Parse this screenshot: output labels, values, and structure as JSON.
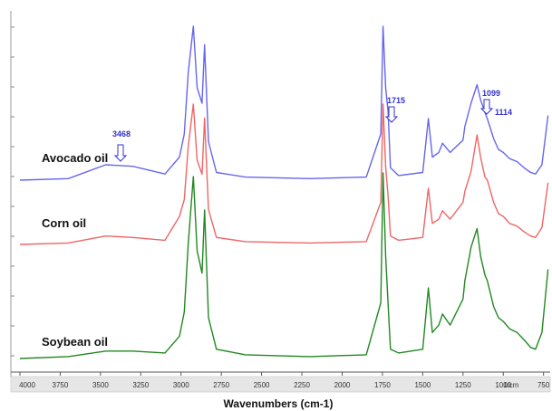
{
  "chart_data": {
    "type": "line",
    "title": "",
    "xlabel": "Wavenumbers (cm-1)",
    "ylabel": "",
    "x_unit_label": "1/cm",
    "xlim": [
      4000,
      720
    ],
    "x_reversed": true,
    "grid": false,
    "x_ticks": [
      4000,
      3750,
      3500,
      3250,
      3000,
      2750,
      2500,
      2250,
      2000,
      1750,
      1500,
      1250,
      1000,
      750
    ],
    "series": [
      {
        "name": "Avocado oil",
        "color": "#6666ee",
        "points": [
          [
            4000,
            0.0
          ],
          [
            3700,
            0.01
          ],
          [
            3468,
            0.1
          ],
          [
            3300,
            0.09
          ],
          [
            3100,
            0.04
          ],
          [
            3010,
            0.15
          ],
          [
            2980,
            0.3
          ],
          [
            2955,
            0.7
          ],
          [
            2924,
            1.0
          ],
          [
            2900,
            0.6
          ],
          [
            2870,
            0.5
          ],
          [
            2854,
            0.88
          ],
          [
            2830,
            0.25
          ],
          [
            2780,
            0.05
          ],
          [
            2600,
            0.02
          ],
          [
            2200,
            0.01
          ],
          [
            1850,
            0.02
          ],
          [
            1760,
            0.3
          ],
          [
            1746,
            1.0
          ],
          [
            1730,
            0.6
          ],
          [
            1715,
            0.45
          ],
          [
            1700,
            0.08
          ],
          [
            1650,
            0.03
          ],
          [
            1500,
            0.05
          ],
          [
            1465,
            0.4
          ],
          [
            1440,
            0.15
          ],
          [
            1400,
            0.18
          ],
          [
            1377,
            0.24
          ],
          [
            1330,
            0.18
          ],
          [
            1250,
            0.26
          ],
          [
            1238,
            0.35
          ],
          [
            1200,
            0.5
          ],
          [
            1163,
            0.62
          ],
          [
            1140,
            0.52
          ],
          [
            1114,
            0.44
          ],
          [
            1099,
            0.4
          ],
          [
            1060,
            0.27
          ],
          [
            1030,
            0.2
          ],
          [
            1000,
            0.18
          ],
          [
            960,
            0.14
          ],
          [
            914,
            0.12
          ],
          [
            870,
            0.08
          ],
          [
            830,
            0.05
          ],
          [
            800,
            0.04
          ],
          [
            760,
            0.1
          ],
          [
            722,
            0.42
          ]
        ]
      },
      {
        "name": "Corn oil",
        "color": "#ee6666",
        "points": [
          [
            4000,
            0.0
          ],
          [
            3700,
            0.01
          ],
          [
            3468,
            0.06
          ],
          [
            3300,
            0.05
          ],
          [
            3100,
            0.03
          ],
          [
            3010,
            0.2
          ],
          [
            2980,
            0.32
          ],
          [
            2955,
            0.7
          ],
          [
            2924,
            1.0
          ],
          [
            2900,
            0.6
          ],
          [
            2870,
            0.5
          ],
          [
            2854,
            0.9
          ],
          [
            2830,
            0.25
          ],
          [
            2780,
            0.05
          ],
          [
            2600,
            0.02
          ],
          [
            2200,
            0.01
          ],
          [
            1850,
            0.02
          ],
          [
            1760,
            0.3
          ],
          [
            1746,
            1.0
          ],
          [
            1730,
            0.55
          ],
          [
            1715,
            0.35
          ],
          [
            1700,
            0.06
          ],
          [
            1650,
            0.03
          ],
          [
            1500,
            0.05
          ],
          [
            1465,
            0.4
          ],
          [
            1440,
            0.15
          ],
          [
            1400,
            0.18
          ],
          [
            1377,
            0.24
          ],
          [
            1330,
            0.18
          ],
          [
            1250,
            0.3
          ],
          [
            1238,
            0.38
          ],
          [
            1200,
            0.52
          ],
          [
            1163,
            0.78
          ],
          [
            1140,
            0.62
          ],
          [
            1114,
            0.48
          ],
          [
            1099,
            0.46
          ],
          [
            1060,
            0.3
          ],
          [
            1030,
            0.22
          ],
          [
            1000,
            0.2
          ],
          [
            960,
            0.15
          ],
          [
            914,
            0.13
          ],
          [
            870,
            0.09
          ],
          [
            830,
            0.06
          ],
          [
            800,
            0.05
          ],
          [
            760,
            0.12
          ],
          [
            722,
            0.44
          ]
        ]
      },
      {
        "name": "Soybean oil",
        "color": "#228822",
        "points": [
          [
            4000,
            0.0
          ],
          [
            3700,
            0.01
          ],
          [
            3468,
            0.04
          ],
          [
            3300,
            0.04
          ],
          [
            3100,
            0.03
          ],
          [
            3010,
            0.12
          ],
          [
            2980,
            0.25
          ],
          [
            2955,
            0.62
          ],
          [
            2924,
            0.98
          ],
          [
            2900,
            0.58
          ],
          [
            2870,
            0.46
          ],
          [
            2854,
            0.8
          ],
          [
            2830,
            0.22
          ],
          [
            2780,
            0.05
          ],
          [
            2600,
            0.02
          ],
          [
            2200,
            0.01
          ],
          [
            1850,
            0.02
          ],
          [
            1760,
            0.3
          ],
          [
            1746,
            1.0
          ],
          [
            1730,
            0.55
          ],
          [
            1715,
            0.3
          ],
          [
            1700,
            0.05
          ],
          [
            1650,
            0.03
          ],
          [
            1500,
            0.05
          ],
          [
            1465,
            0.38
          ],
          [
            1440,
            0.14
          ],
          [
            1400,
            0.18
          ],
          [
            1377,
            0.24
          ],
          [
            1330,
            0.18
          ],
          [
            1250,
            0.32
          ],
          [
            1238,
            0.42
          ],
          [
            1200,
            0.6
          ],
          [
            1163,
            0.7
          ],
          [
            1140,
            0.55
          ],
          [
            1114,
            0.45
          ],
          [
            1099,
            0.42
          ],
          [
            1060,
            0.28
          ],
          [
            1030,
            0.22
          ],
          [
            1000,
            0.2
          ],
          [
            960,
            0.16
          ],
          [
            914,
            0.14
          ],
          [
            870,
            0.1
          ],
          [
            830,
            0.06
          ],
          [
            800,
            0.05
          ],
          [
            760,
            0.14
          ],
          [
            722,
            0.48
          ]
        ]
      }
    ],
    "annotations": [
      {
        "text": "3468",
        "x": 3468,
        "series": "Avocado oil"
      },
      {
        "text": "1715",
        "x": 1715,
        "series": "Avocado oil"
      },
      {
        "text": "1099",
        "x": 1099,
        "series": "Avocado oil"
      },
      {
        "text": "1114",
        "x": 1114,
        "series": "Avocado oil"
      }
    ]
  }
}
